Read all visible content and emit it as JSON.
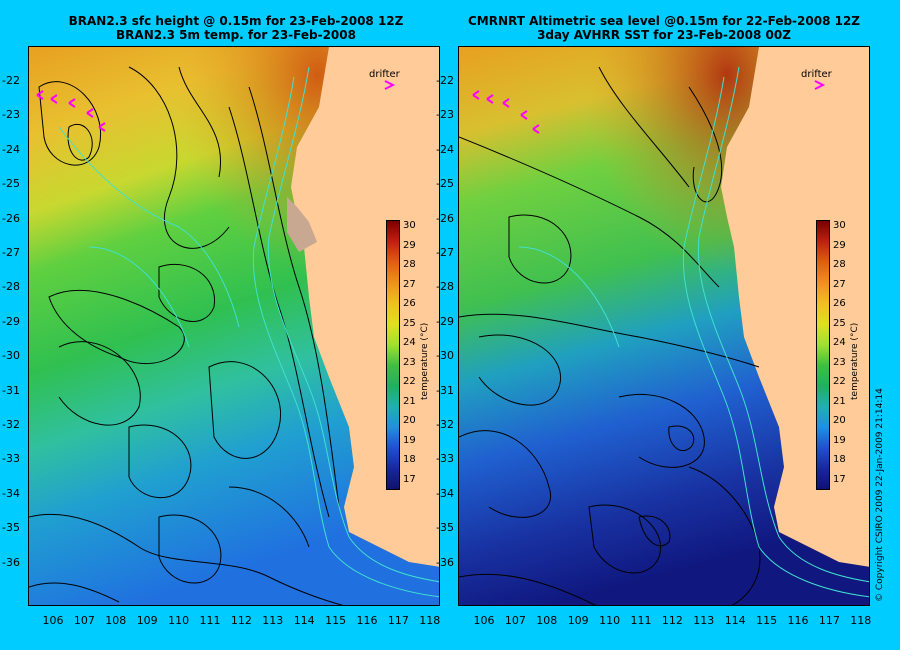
{
  "left": {
    "title_line1": "BRAN2.3 sfc height @ 0.15m for 23-Feb-2008 12Z",
    "title_line2": "BRAN2.3 5m temp. for 23-Feb-2008",
    "drifter_label": "drifter"
  },
  "right": {
    "title_line1": "CMRNRT Altimetric sea level  @0.15m  for 22-Feb-2008 12Z",
    "title_line2": "3day AVHRR SST for 23-Feb-2008 00Z",
    "drifter_label": "drifter"
  },
  "lat_labels": [
    "-22",
    "-23",
    "-24",
    "-25",
    "-26",
    "-27",
    "-28",
    "-29",
    "-30",
    "-31",
    "-32",
    "-33",
    "-34",
    "-35",
    "-36"
  ],
  "lon_labels": [
    "106",
    "107",
    "108",
    "109",
    "110",
    "111",
    "112",
    "113",
    "114",
    "115",
    "116",
    "117",
    "118"
  ],
  "colorbar": {
    "title": "temperature (°C)",
    "ticks": [
      "30",
      "29",
      "28",
      "27",
      "26",
      "25",
      "24",
      "23",
      "22",
      "21",
      "20",
      "19",
      "18",
      "17"
    ]
  },
  "copyright": "© Copyright CSIRO 2009   22-Jan-2009 21:14:14",
  "colors": {
    "background": "#00ccff",
    "land": "#ffcc99",
    "contour": "#000000",
    "isobath": "#40e0d0",
    "drifter": "#ff00ff"
  }
}
